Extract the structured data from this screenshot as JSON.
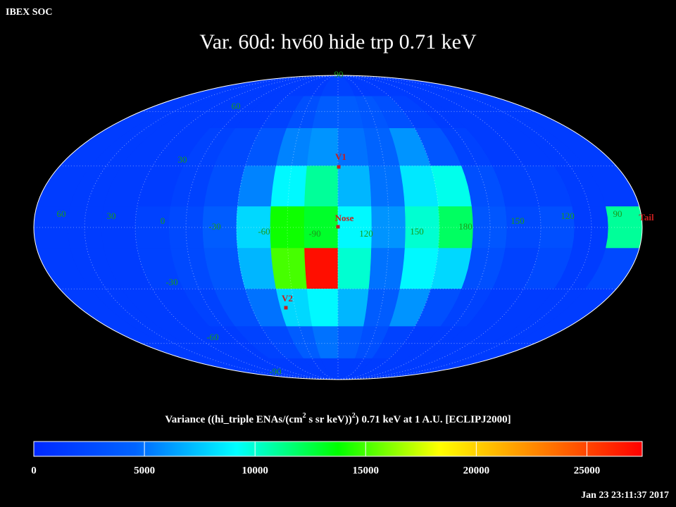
{
  "header": {
    "org": "IBEX SOC",
    "title": "Var. 60d: hv60 hide trp 0.71 keV",
    "timestamp": "Jan 23 23:11:37 2017"
  },
  "map": {
    "type": "heatmap",
    "values": [
      [
        1500,
        1500,
        1500,
        1500,
        1500,
        1500,
        1500,
        1500,
        2000,
        2000,
        1500,
        1500,
        1500,
        1500,
        1500,
        1500,
        1500,
        1500
      ],
      [
        1500,
        1500,
        1500,
        1500,
        1500,
        1500,
        2000,
        3000,
        4000,
        4000,
        3500,
        3000,
        2000,
        1500,
        1500,
        1500,
        1500,
        1500
      ],
      [
        1500,
        1500,
        1500,
        1500,
        2000,
        2500,
        3500,
        5500,
        6000,
        5000,
        4500,
        6000,
        3500,
        2000,
        1500,
        1500,
        1500,
        1500
      ],
      [
        1500,
        1500,
        1500,
        1500,
        2000,
        3000,
        5500,
        9000,
        11000,
        7000,
        5000,
        8500,
        9500,
        3000,
        2000,
        2000,
        1500,
        1500
      ],
      [
        1500,
        1500,
        1500,
        2000,
        2500,
        4000,
        8000,
        14000,
        13000,
        9000,
        6000,
        10000,
        12000,
        3500,
        2500,
        3000,
        1500,
        11000
      ],
      [
        1500,
        1500,
        1500,
        2000,
        2500,
        3500,
        7000,
        15000,
        27000,
        10000,
        5000,
        9000,
        8000,
        3000,
        2000,
        2500,
        1500,
        2500
      ],
      [
        1500,
        1500,
        1500,
        1500,
        2000,
        3000,
        5000,
        8000,
        9000,
        7000,
        4000,
        6000,
        3000,
        2000,
        1500,
        1500,
        1500,
        1500
      ],
      [
        1500,
        1500,
        1500,
        1500,
        1500,
        2000,
        2500,
        4000,
        5000,
        4000,
        3000,
        2000,
        1500,
        1500,
        1500,
        1500,
        1500,
        1500
      ],
      [
        1500,
        1500,
        1500,
        1500,
        1500,
        1500,
        1500,
        1500,
        1500,
        1500,
        1500,
        1500,
        1500,
        1500,
        1500,
        1500,
        1500,
        1500
      ]
    ],
    "lat_labels": [
      90,
      60,
      30,
      -30,
      -60,
      -90
    ],
    "lon_labels": [
      60,
      30,
      0,
      -30,
      -60,
      -90,
      120,
      150,
      180,
      150,
      120,
      90
    ],
    "markers": [
      "V1",
      "Nose",
      "V2",
      "Tail"
    ]
  },
  "colorbar": {
    "label_parts": [
      "Variance ((hi_triple ENAs/(cm",
      "2",
      " s sr keV))",
      "2",
      ") 0.71 keV at 1 A.U. [ECLIPJ2000]"
    ],
    "lim": [
      0,
      27500
    ],
    "ticks": [
      0,
      5000,
      10000,
      15000,
      20000,
      25000
    ],
    "colormap": [
      "#0028ff",
      "#0064ff",
      "#00ffff",
      "#00ff00",
      "#ffff00",
      "#ff8000",
      "#ff0000"
    ]
  }
}
